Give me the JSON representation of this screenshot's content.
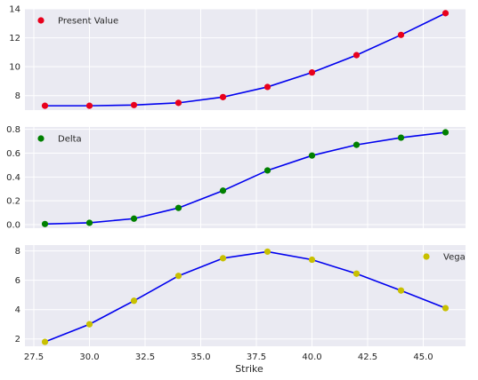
{
  "chart_data": {
    "type": "line",
    "shared_x_label": "Strike",
    "x_tick_labels": [
      "27.5",
      "30.0",
      "32.5",
      "35.0",
      "37.5",
      "40.0",
      "42.5",
      "45.0"
    ],
    "x_ticks": [
      27.5,
      30.0,
      32.5,
      35.0,
      37.5,
      40.0,
      42.5,
      45.0
    ],
    "xlim": [
      27.1,
      46.9
    ],
    "x": [
      28,
      30,
      32,
      34,
      36,
      38,
      40,
      42,
      44,
      46
    ],
    "line_color": "#0000ee",
    "panels": [
      {
        "series": [
          {
            "name": "Present Value",
            "values": [
              7.3,
              7.3,
              7.35,
              7.5,
              7.9,
              8.6,
              9.6,
              10.8,
              12.2,
              13.7
            ]
          }
        ],
        "marker_color": "#e8001c",
        "legend_position": "top-left",
        "ylim": [
          7.0,
          14.0
        ],
        "y_ticks": [
          8,
          10,
          12,
          14
        ],
        "y_tick_labels": [
          "8",
          "10",
          "12",
          "14"
        ]
      },
      {
        "series": [
          {
            "name": "Delta",
            "values": [
              0.005,
              0.015,
              0.05,
              0.14,
              0.285,
              0.455,
              0.58,
              0.67,
              0.73,
              0.775
            ]
          }
        ],
        "marker_color": "#008000",
        "legend_position": "top-left",
        "ylim": [
          -0.03,
          0.82
        ],
        "y_ticks": [
          0.0,
          0.2,
          0.4,
          0.6,
          0.8
        ],
        "y_tick_labels": [
          "0.0",
          "0.2",
          "0.4",
          "0.6",
          "0.8"
        ]
      },
      {
        "series": [
          {
            "name": "Vega",
            "values": [
              1.8,
              3.0,
              4.6,
              6.3,
              7.5,
              7.95,
              7.4,
              6.45,
              5.3,
              4.1
            ]
          }
        ],
        "marker_color": "#c8c000",
        "legend_position": "top-right",
        "ylim": [
          1.5,
          8.4
        ],
        "y_ticks": [
          2,
          4,
          6,
          8
        ],
        "y_tick_labels": [
          "2",
          "4",
          "6",
          "8"
        ]
      }
    ]
  },
  "colors": {
    "axes_background": "#eaeaf2",
    "grid": "#ffffff",
    "text": "#262626"
  }
}
